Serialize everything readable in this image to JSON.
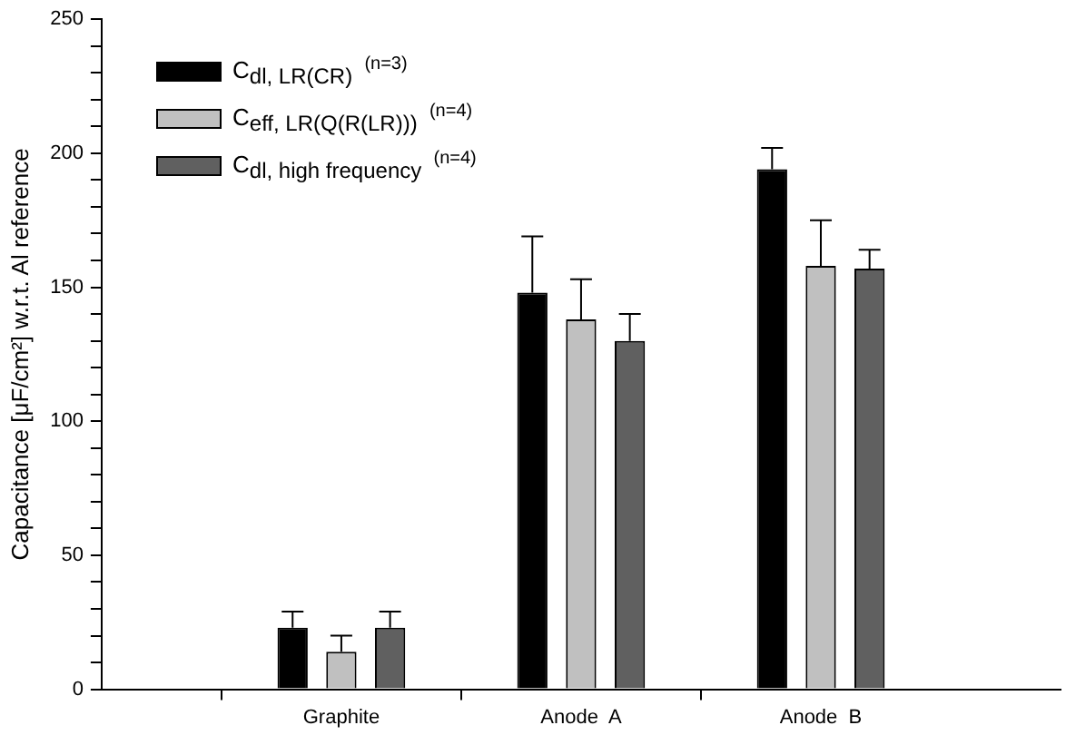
{
  "chart_data": {
    "type": "bar",
    "ylabel": "Capacitance [μF/cm²] w.r.t. Al reference",
    "categories": [
      null,
      "Graphite",
      "Anode  A",
      "Anode  B",
      null
    ],
    "series": [
      {
        "name": "C$_{dl, LR(CR)}$ $^{(n=3)}$",
        "color": "#000000",
        "values": [
          null,
          23,
          148,
          194,
          null
        ],
        "errors": [
          null,
          [
            23,
            29
          ],
          [
            148,
            169
          ],
          [
            194,
            202
          ],
          null
        ]
      },
      {
        "name": "C$_{eff, LR(Q(R(LR)))}$ $^{(n=4)}$",
        "color": "#c0c0c0",
        "values": [
          null,
          14,
          138,
          158,
          null
        ],
        "errors": [
          null,
          [
            14,
            20
          ],
          [
            138,
            153
          ],
          [
            158,
            175
          ],
          null
        ]
      },
      {
        "name": "C$_{dl, high frequency}$ $^{(n=4)}$",
        "color": "#606060",
        "values": [
          null,
          23,
          130,
          157,
          null
        ],
        "errors": [
          null,
          [
            23,
            29
          ],
          [
            130,
            140
          ],
          [
            157,
            164
          ],
          null
        ]
      }
    ],
    "ylim": [
      0,
      250
    ],
    "yticks": [
      0,
      {
        "value": 10,
        "label": null
      },
      {
        "value": 20,
        "label": null
      },
      {
        "value": 30,
        "label": null
      },
      {
        "value": 40,
        "label": null
      },
      50,
      {
        "value": 60,
        "label": null
      },
      {
        "value": 70,
        "label": null
      },
      {
        "value": 80,
        "label": null
      },
      {
        "value": 90,
        "label": null
      },
      100,
      {
        "value": 110,
        "label": null
      },
      {
        "value": 120,
        "label": null
      },
      {
        "value": 130,
        "label": null
      },
      {
        "value": 140,
        "label": null
      },
      150,
      {
        "value": 160,
        "label": null
      },
      {
        "value": 170,
        "label": null
      },
      {
        "value": 180,
        "label": null
      },
      {
        "value": 190,
        "label": null
      },
      200,
      {
        "value": 210,
        "label": null
      },
      {
        "value": 220,
        "label": null
      },
      {
        "value": 230,
        "label": null
      },
      {
        "value": 240,
        "label": null
      },
      250
    ],
    "grid": false,
    "legend": "top left"
  }
}
